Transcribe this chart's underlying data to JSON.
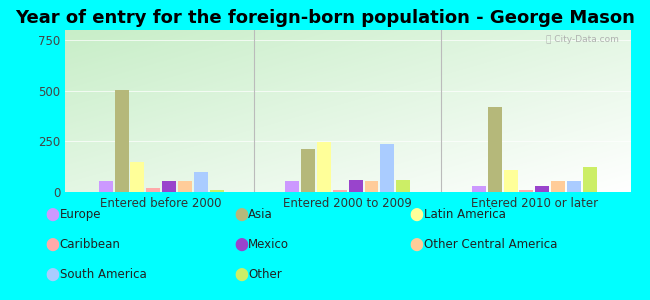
{
  "title": "Year of entry for the foreign-born population - George Mason",
  "categories": [
    "Entered before 2000",
    "Entered 2000 to 2009",
    "Entered 2010 or later"
  ],
  "series_order": [
    "Europe",
    "Asia",
    "Latin America",
    "Caribbean",
    "Mexico",
    "Other Central America",
    "South America",
    "Other"
  ],
  "series": {
    "Europe": [
      55,
      55,
      30
    ],
    "Asia": [
      505,
      210,
      420
    ],
    "Latin America": [
      150,
      245,
      110
    ],
    "Caribbean": [
      18,
      8,
      8
    ],
    "Mexico": [
      55,
      60,
      30
    ],
    "Other Central America": [
      55,
      55,
      55
    ],
    "South America": [
      100,
      235,
      55
    ],
    "Other": [
      12,
      60,
      125
    ]
  },
  "colors": {
    "Europe": "#cc99ff",
    "Asia": "#b5b87a",
    "Latin America": "#ffff99",
    "Caribbean": "#ffaaaa",
    "Mexico": "#9944cc",
    "Other Central America": "#ffcc99",
    "South America": "#aaccff",
    "Other": "#ccee66"
  },
  "ylim": [
    0,
    800
  ],
  "yticks": [
    0,
    250,
    500,
    750
  ],
  "outer_background": "#00ffff",
  "title_fontsize": 13,
  "axis_fontsize": 8.5,
  "legend_fontsize": 8.5,
  "bar_width": 0.028
}
